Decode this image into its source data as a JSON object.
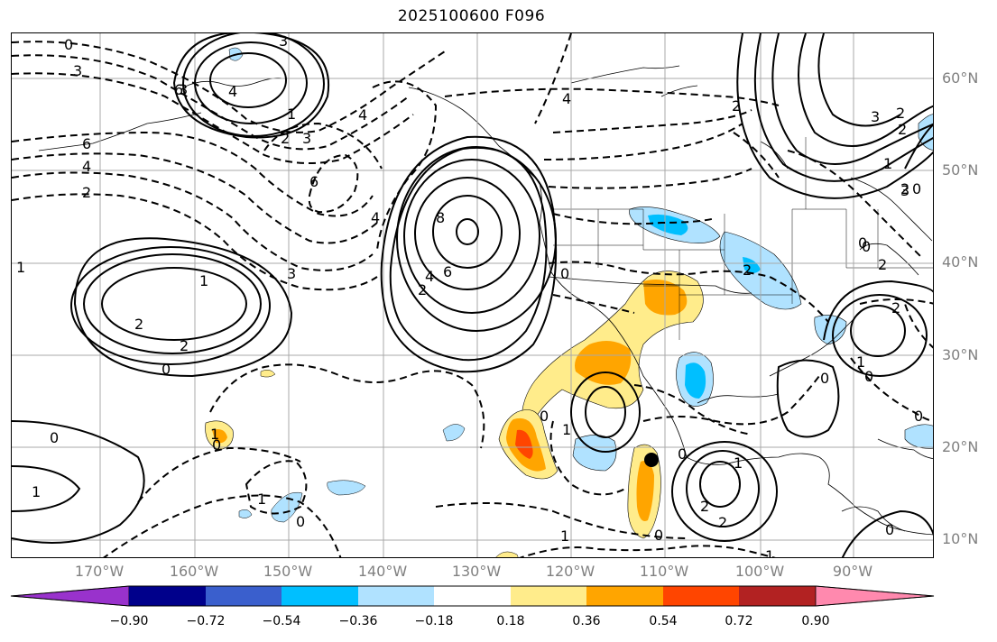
{
  "title": "2025100600 F096",
  "lat_labels": [
    "60°N",
    "50°N",
    "40°N",
    "30°N",
    "20°N",
    "10°N"
  ],
  "lon_labels": [
    "170°W",
    "160°W",
    "150°W",
    "140°W",
    "130°W",
    "120°W",
    "110°W",
    "100°W",
    "90°W"
  ],
  "colorbar": {
    "ticks": [
      "−0.90",
      "−0.72",
      "−0.54",
      "−0.36",
      "−0.18",
      "0.18",
      "0.36",
      "0.54",
      "0.72",
      "0.90"
    ],
    "colors": [
      "#9932cc",
      "#00008b",
      "#3a5fcd",
      "#00bfff",
      "#b0e2ff",
      "#ffffff",
      "#ffec8b",
      "#ffa500",
      "#ff4500",
      "#b22222",
      "#ff89ae"
    ]
  },
  "contour_labels": {
    "solid": [
      "0",
      "3",
      "4",
      "1",
      "2",
      "3",
      "8",
      "6",
      "4",
      "2",
      "1",
      "2",
      "2",
      "0",
      "0",
      "1",
      "0",
      "2",
      "2",
      "1",
      "0",
      "3",
      "2",
      "2",
      "1",
      "3",
      "0",
      "0",
      "2",
      "2",
      "1",
      "0"
    ],
    "dashed": [
      "3",
      "6",
      "4",
      "2",
      "1",
      "4",
      "3",
      "6",
      "4",
      "6",
      "3",
      "1",
      "4",
      "1",
      "2",
      "0",
      "0",
      "1",
      "0",
      "1",
      "0",
      "0",
      "1",
      "0",
      "0",
      "2",
      "0",
      "2"
    ]
  },
  "colors": {
    "lat_lon_label": "#808080",
    "contour": "#000000",
    "gridline": "#a9a9a9"
  },
  "point_marker": "black-dot"
}
